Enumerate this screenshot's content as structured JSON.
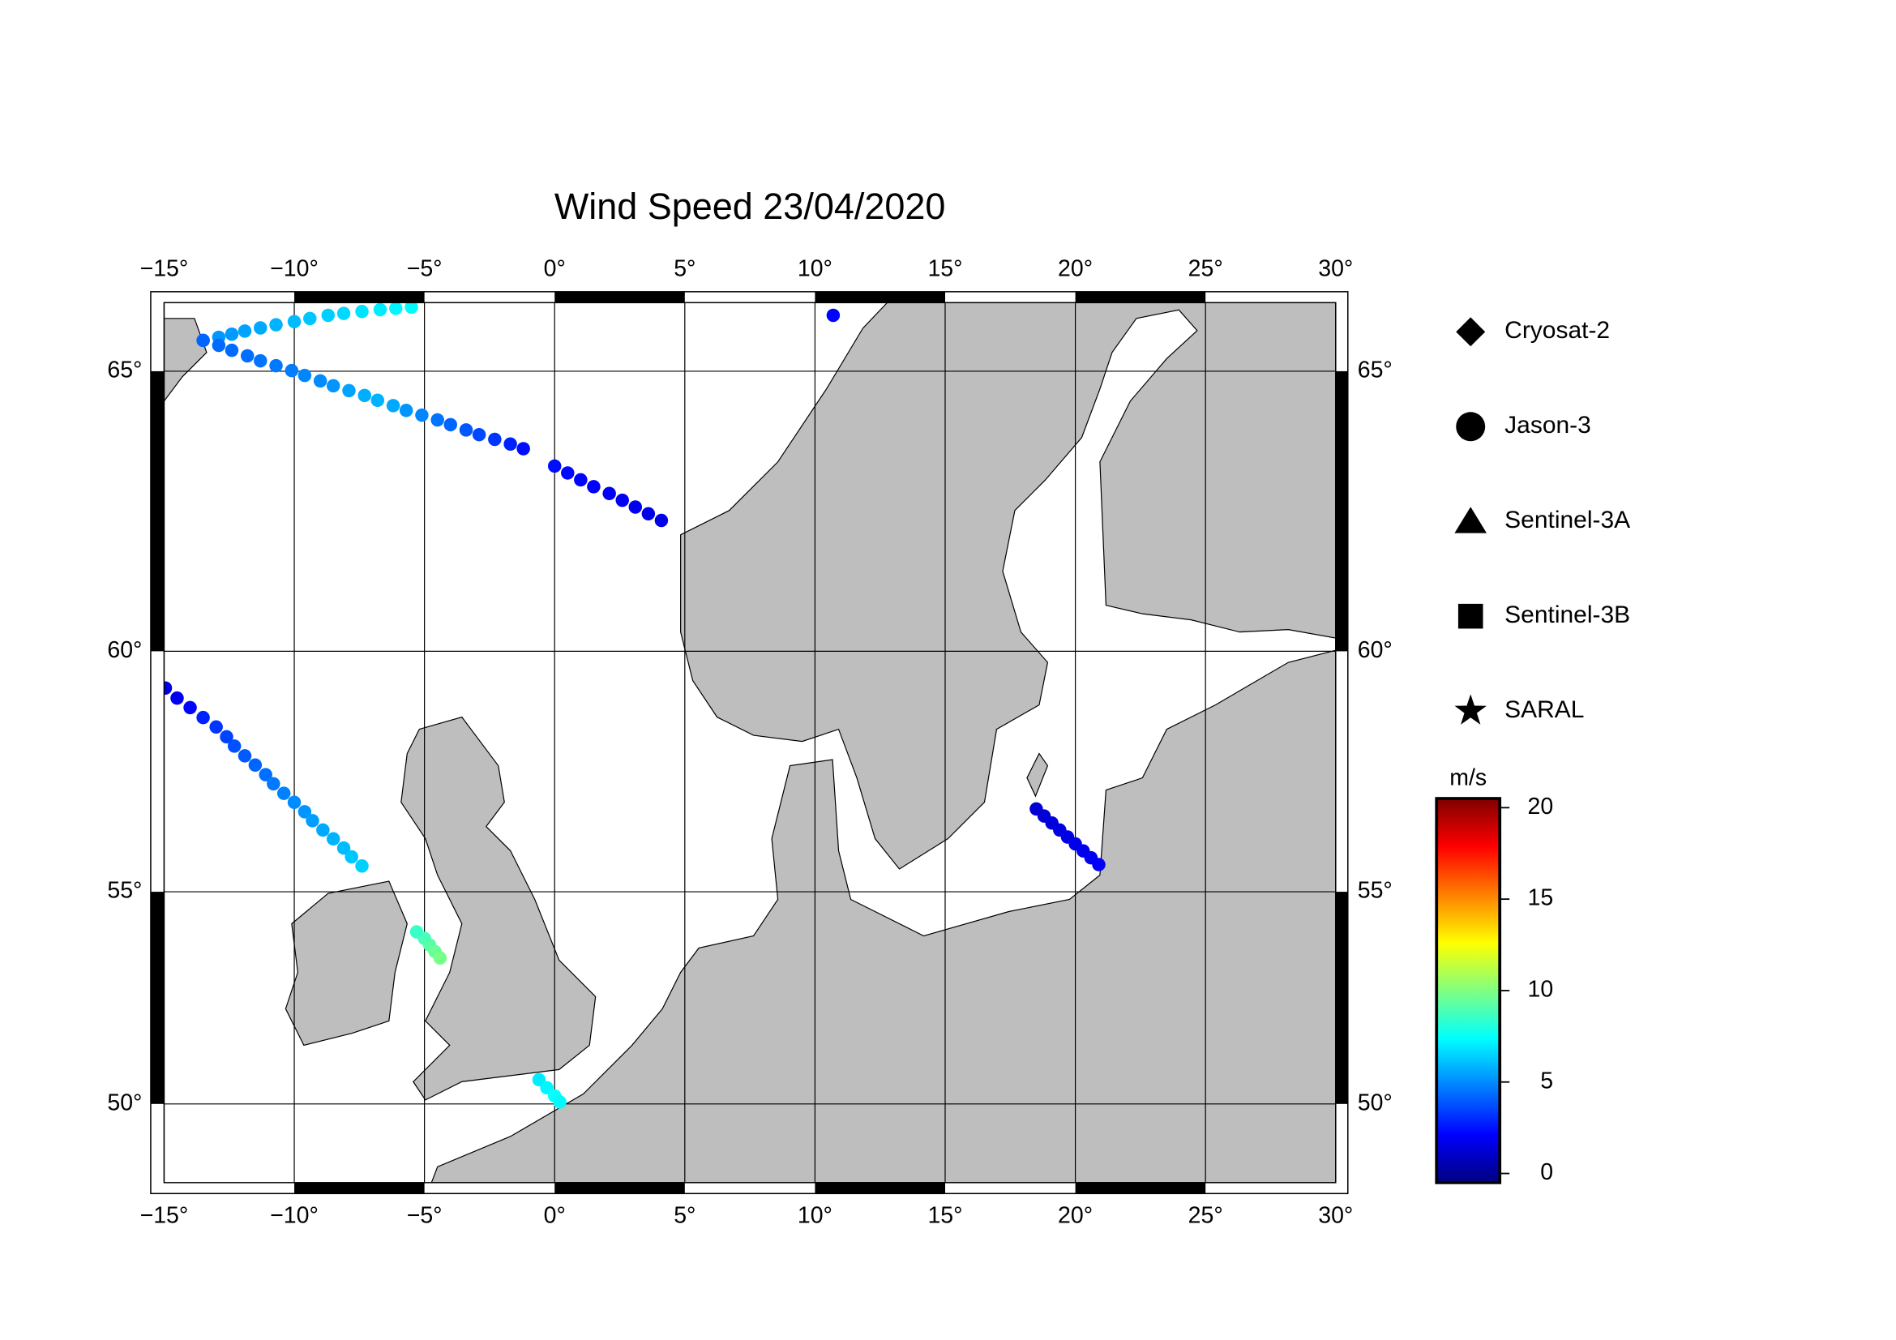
{
  "chart_data": {
    "type": "scatter",
    "title": "Wind Speed 23/04/2020",
    "projection": "mercator",
    "xlim": [
      -15,
      30
    ],
    "ylim": [
      48,
      66.1
    ],
    "xticks": [
      {
        "value": -15,
        "label": "−15°"
      },
      {
        "value": -10,
        "label": "−10°"
      },
      {
        "value": -5,
        "label": "−5°"
      },
      {
        "value": 0,
        "label": "0°"
      },
      {
        "value": 5,
        "label": "5°"
      },
      {
        "value": 10,
        "label": "10°"
      },
      {
        "value": 15,
        "label": "15°"
      },
      {
        "value": 20,
        "label": "20°"
      },
      {
        "value": 25,
        "label": "25°"
      },
      {
        "value": 30,
        "label": "30°"
      }
    ],
    "yticks": [
      {
        "value": 50,
        "label": "50°"
      },
      {
        "value": 55,
        "label": "55°"
      },
      {
        "value": 60,
        "label": "60°"
      },
      {
        "value": 65,
        "label": "65°"
      }
    ],
    "grid": true,
    "colorbar": {
      "label": "m/s",
      "clim": [
        -0.5,
        20.5
      ],
      "ticks": [
        0,
        5,
        10,
        15,
        20
      ],
      "colormap": "jet"
    },
    "series": [
      {
        "name": "Cryosat-2",
        "marker": "diamond",
        "x": [],
        "y": [],
        "values": []
      },
      {
        "name": "Jason-3",
        "marker": "circle",
        "x": [
          -13.5,
          -12.9,
          -12.4,
          -11.9,
          -11.3,
          -10.7,
          -10.0,
          -9.4,
          -8.7,
          -8.1,
          -7.4,
          -6.7,
          -6.1,
          -5.5,
          -13.5,
          -12.9,
          -12.4,
          -11.8,
          -11.3,
          -10.7,
          -10.1,
          -9.6,
          -9.0,
          -8.5,
          -7.9,
          -7.3,
          -6.8,
          -6.2,
          -5.7,
          -5.1,
          -4.5,
          -4.0,
          -3.4,
          -2.9,
          -2.3,
          -1.7,
          -1.2,
          0,
          0.5,
          1.0,
          1.5,
          2.1,
          2.6,
          3.1,
          3.6,
          4.1,
          -14.95,
          -14.5,
          -14.0,
          -13.5,
          -13.0,
          -12.6,
          -12.3,
          -11.9,
          -11.5,
          -11.1,
          -10.8,
          -10.4,
          -10.0,
          -9.6,
          -9.3,
          -8.9,
          -8.5,
          -8.1,
          -7.8,
          -7.4,
          -5.3,
          -5.0,
          -4.8,
          -4.6,
          -4.4,
          -0.6,
          -0.3,
          0,
          0.2,
          18.5,
          18.8,
          19.1,
          19.4,
          19.7,
          20.0,
          20.3,
          20.6,
          20.9,
          10.7
        ],
        "y": [
          65.5,
          65.55,
          65.6,
          65.65,
          65.7,
          65.75,
          65.8,
          65.85,
          65.9,
          65.93,
          65.96,
          65.99,
          66.01,
          66.03,
          65.5,
          65.42,
          65.34,
          65.25,
          65.17,
          65.09,
          65.01,
          64.93,
          64.84,
          64.76,
          64.68,
          64.6,
          64.52,
          64.43,
          64.35,
          64.27,
          64.19,
          64.11,
          64.02,
          63.94,
          63.86,
          63.78,
          63.7,
          63.4,
          63.28,
          63.16,
          63.04,
          62.92,
          62.8,
          62.68,
          62.56,
          62.44,
          59.28,
          59.08,
          58.89,
          58.69,
          58.5,
          58.3,
          58.11,
          57.91,
          57.72,
          57.52,
          57.33,
          57.13,
          56.94,
          56.74,
          56.55,
          56.35,
          56.16,
          55.96,
          55.77,
          55.57,
          54.1,
          53.95,
          53.8,
          53.65,
          53.5,
          50.6,
          50.4,
          50.2,
          50.05,
          56.8,
          56.65,
          56.5,
          56.35,
          56.2,
          56.05,
          55.9,
          55.75,
          55.6,
          65.9
        ],
        "values": [
          5.0,
          5.2,
          5.3,
          5.5,
          5.6,
          5.8,
          6.0,
          6.2,
          6.4,
          6.6,
          6.8,
          7.0,
          7.2,
          7.3,
          4.2,
          4.3,
          4.3,
          4.4,
          4.5,
          4.6,
          4.7,
          4.9,
          5.0,
          5.2,
          5.5,
          5.7,
          5.8,
          5.6,
          5.2,
          4.9,
          4.5,
          4.2,
          3.9,
          3.6,
          3.2,
          2.8,
          2.4,
          2.4,
          2.3,
          2.2,
          2.1,
          2.0,
          1.9,
          1.8,
          1.7,
          1.6,
          1.5,
          1.8,
          2.2,
          2.8,
          3.2,
          3.5,
          3.8,
          4.0,
          4.2,
          4.4,
          4.6,
          4.8,
          5.0,
          5.2,
          5.4,
          5.6,
          5.8,
          6.0,
          6.2,
          6.4,
          8.5,
          8.8,
          9.2,
          9.5,
          9.8,
          7.0,
          7.2,
          7.5,
          7.3,
          1.2,
          1.3,
          1.4,
          1.5,
          1.6,
          1.7,
          1.8,
          1.9,
          2.0,
          2.2
        ]
      },
      {
        "name": "Sentinel-3A",
        "marker": "triangle",
        "x": [],
        "y": [],
        "values": []
      },
      {
        "name": "Sentinel-3B",
        "marker": "square",
        "x": [],
        "y": [],
        "values": []
      },
      {
        "name": "SARAL",
        "marker": "star",
        "x": [],
        "y": [],
        "values": []
      }
    ]
  }
}
